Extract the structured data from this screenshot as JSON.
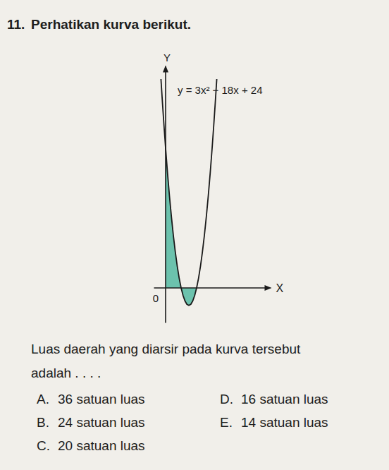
{
  "number": "11.",
  "prompt": "Perhatikan kurva berikut.",
  "chart_data": {
    "type": "line",
    "x": [
      -0.6,
      -0.4,
      -0.2,
      0,
      0.25,
      0.5,
      0.75,
      1,
      1.25,
      1.5,
      1.75,
      2,
      2.25,
      2.5,
      2.75,
      3,
      3.25,
      3.5,
      3.75,
      4,
      4.25,
      4.5,
      4.75,
      5,
      5.25,
      5.5,
      5.75,
      6,
      6.2,
      6.4,
      6.6
    ],
    "values": [
      35.88,
      31.68,
      27.72,
      24,
      19.69,
      15.75,
      12.19,
      9,
      6.19,
      3.75,
      1.69,
      0,
      -1.31,
      -2.25,
      -2.81,
      -3,
      -2.81,
      -2.25,
      -1.31,
      0,
      1.69,
      3.75,
      6.19,
      9,
      12.19,
      15.75,
      19.69,
      24,
      27.72,
      31.68,
      35.88
    ],
    "color": "#1a1a1a",
    "fill_between": [
      0,
      4
    ],
    "fill_color": "#6cc2ad",
    "xlim": [
      -1.5,
      13.5
    ],
    "ylim": [
      -6,
      38
    ],
    "xticks": [
      0
    ],
    "tick_labels": "x",
    "x_label": "X",
    "y_label": "Y",
    "annotations": [
      "y = 3x² − 18x + 24"
    ]
  },
  "question": [
    "Luas daerah yang diarsir pada kurva tersebut",
    "adalah . . . ."
  ],
  "options": [
    {
      "letter": "A.",
      "text": "36 satuan luas"
    },
    {
      "letter": "B.",
      "text": "24 satuan luas"
    },
    {
      "letter": "C.",
      "text": "20 satuan luas"
    },
    {
      "letter": "D.",
      "text": "16 satuan luas"
    },
    {
      "letter": "E.",
      "text": "14 satuan luas"
    }
  ]
}
